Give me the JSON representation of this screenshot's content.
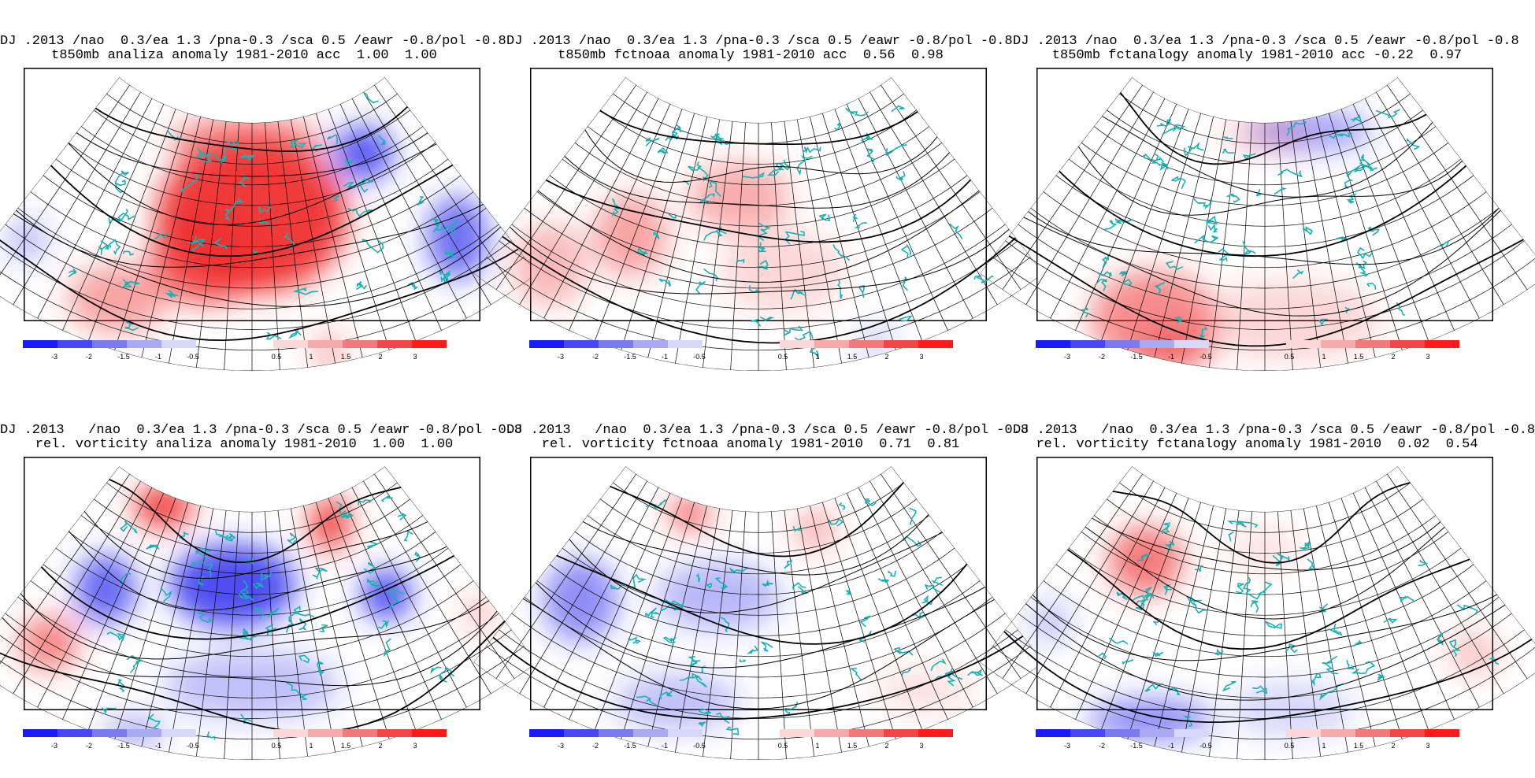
{
  "colorbar": {
    "neg_labels": [
      "-3",
      "-2",
      "-1.5",
      "-1",
      "-0.5"
    ],
    "pos_labels": [
      "0.5",
      "1",
      "1.5",
      "2",
      "3"
    ],
    "neg_colors": [
      "#1a1aff",
      "#4646f5",
      "#7a7af0",
      "#aaaaf3",
      "#d7d7fa"
    ],
    "pos_colors": [
      "#fcd7d7",
      "#f7aaaa",
      "#f27a7a",
      "#f24646",
      "#ff1a1a"
    ]
  },
  "colors": {
    "coast": "#17b3b3",
    "grid": "#000000",
    "warm": "#f03030",
    "cold": "#3030f0"
  },
  "panels": [
    {
      "title1": "DJ .2013 /nao  0.3/ea 1.3 /pna-0.3 /sca 0.5 /eawr -0.8/pol -0.8",
      "title2": "t850mb analiza anomaly 1981-2010 acc  1.00  1.00",
      "blobs": [
        {
          "u": 0.5,
          "v": 0.62,
          "ru": 0.38,
          "rv": 0.55,
          "a": 0.95,
          "c": "warm"
        },
        {
          "u": 0.4,
          "v": 0.45,
          "ru": 0.22,
          "rv": 0.35,
          "a": 0.75,
          "c": "warm"
        },
        {
          "u": 0.48,
          "v": 0.92,
          "ru": 0.3,
          "rv": 0.2,
          "a": 0.55,
          "c": "warm"
        },
        {
          "u": 0.25,
          "v": 0.2,
          "ru": 0.2,
          "rv": 0.25,
          "a": 0.45,
          "c": "warm"
        },
        {
          "u": 0.82,
          "v": 0.78,
          "ru": 0.12,
          "rv": 0.2,
          "a": 0.8,
          "c": "cold"
        },
        {
          "u": 0.92,
          "v": 0.3,
          "ru": 0.12,
          "rv": 0.3,
          "a": 0.7,
          "c": "cold"
        },
        {
          "u": 0.05,
          "v": 0.25,
          "ru": 0.08,
          "rv": 0.15,
          "a": 0.35,
          "c": "cold"
        },
        {
          "u": 0.63,
          "v": 0.05,
          "ru": 0.06,
          "rv": 0.15,
          "a": 0.4,
          "c": "warm"
        }
      ]
    },
    {
      "title1": "DJ .2013 /nao  0.3/ea 1.3 /pna-0.3 /sca 0.5 /eawr -0.8/pol -0.8",
      "title2": "t850mb fctnoaa anomaly 1981-2010 acc  0.56  0.98",
      "blobs": [
        {
          "u": 0.45,
          "v": 0.7,
          "ru": 0.2,
          "rv": 0.25,
          "a": 0.4,
          "c": "warm"
        },
        {
          "u": 0.22,
          "v": 0.45,
          "ru": 0.15,
          "rv": 0.3,
          "a": 0.45,
          "c": "warm"
        },
        {
          "u": 0.1,
          "v": 0.2,
          "ru": 0.15,
          "rv": 0.3,
          "a": 0.35,
          "c": "warm"
        },
        {
          "u": 0.7,
          "v": 0.05,
          "ru": 0.07,
          "rv": 0.1,
          "a": 0.3,
          "c": "cold"
        },
        {
          "u": 0.55,
          "v": 0.4,
          "ru": 0.25,
          "rv": 0.3,
          "a": 0.2,
          "c": "warm"
        }
      ]
    },
    {
      "title1": "DJ .2013 /nao  0.3/ea 1.3 /pna-0.3 /sca 0.5 /eawr -0.8/pol -0.8",
      "title2": "t850mb fctanalogy anomaly 1981-2010 acc -0.22  0.97",
      "blobs": [
        {
          "u": 0.3,
          "v": 0.15,
          "ru": 0.25,
          "rv": 0.35,
          "a": 0.55,
          "c": "warm"
        },
        {
          "u": 0.35,
          "v": 0.05,
          "ru": 0.15,
          "rv": 0.15,
          "a": 0.5,
          "c": "warm"
        },
        {
          "u": 0.65,
          "v": 0.95,
          "ru": 0.25,
          "rv": 0.15,
          "a": 0.45,
          "c": "cold"
        },
        {
          "u": 0.5,
          "v": 0.95,
          "ru": 0.18,
          "rv": 0.1,
          "a": 0.25,
          "c": "warm"
        },
        {
          "u": 0.55,
          "v": 0.2,
          "ru": 0.35,
          "rv": 0.3,
          "a": 0.2,
          "c": "warm"
        }
      ]
    },
    {
      "title1": "DJ .2013   /nao  0.3/ea 1.3 /pna-0.3 /sca 0.5 /eawr -0.8/pol -0.8",
      "title2": "rel. vorticity analiza anomaly 1981-2010  1.00  1.00",
      "blobs": [
        {
          "u": 0.2,
          "v": 0.95,
          "ru": 0.12,
          "rv": 0.15,
          "a": 0.95,
          "c": "warm"
        },
        {
          "u": 0.75,
          "v": 0.9,
          "ru": 0.08,
          "rv": 0.2,
          "a": 0.9,
          "c": "warm"
        },
        {
          "u": 0.45,
          "v": 0.7,
          "ru": 0.25,
          "rv": 0.3,
          "a": 0.85,
          "c": "cold"
        },
        {
          "u": 0.15,
          "v": 0.55,
          "ru": 0.12,
          "rv": 0.25,
          "a": 0.75,
          "c": "cold"
        },
        {
          "u": 0.82,
          "v": 0.55,
          "ru": 0.1,
          "rv": 0.18,
          "a": 0.85,
          "c": "cold"
        },
        {
          "u": 0.1,
          "v": 0.25,
          "ru": 0.12,
          "rv": 0.2,
          "a": 0.6,
          "c": "warm"
        },
        {
          "u": 0.5,
          "v": 0.3,
          "ru": 0.35,
          "rv": 0.25,
          "a": 0.3,
          "c": "cold"
        },
        {
          "u": 0.3,
          "v": 0.05,
          "ru": 0.12,
          "rv": 0.1,
          "a": 0.45,
          "c": "cold"
        },
        {
          "u": 0.97,
          "v": 0.3,
          "ru": 0.05,
          "rv": 0.12,
          "a": 0.4,
          "c": "warm"
        }
      ]
    },
    {
      "title1": "DJ .2013   /nao  0.3/ea 1.3 /pna-0.3 /sca 0.5 /eawr -0.8/pol -0.8",
      "title2": "rel. vorticity fctnoaa anomaly 1981-2010  0.71  0.81",
      "blobs": [
        {
          "u": 0.27,
          "v": 0.95,
          "ru": 0.08,
          "rv": 0.1,
          "a": 0.9,
          "c": "warm"
        },
        {
          "u": 0.1,
          "v": 0.45,
          "ru": 0.15,
          "rv": 0.3,
          "a": 0.55,
          "c": "cold"
        },
        {
          "u": 0.4,
          "v": 0.65,
          "ru": 0.25,
          "rv": 0.25,
          "a": 0.35,
          "c": "cold"
        },
        {
          "u": 0.68,
          "v": 0.9,
          "ru": 0.08,
          "rv": 0.15,
          "a": 0.4,
          "c": "warm"
        },
        {
          "u": 0.35,
          "v": 0.2,
          "ru": 0.25,
          "rv": 0.2,
          "a": 0.3,
          "c": "cold"
        },
        {
          "u": 0.8,
          "v": 0.15,
          "ru": 0.2,
          "rv": 0.15,
          "a": 0.15,
          "c": "warm"
        }
      ]
    },
    {
      "title1": "DJ .2013   /nao  0.3/ea 1.3 /pna-0.3 /sca 0.5 /eawr -0.8/pol -0.8",
      "title2": "rel. vorticity fctanalogy anomaly 1981-2010  0.02  0.54",
      "blobs": [
        {
          "u": 0.18,
          "v": 0.7,
          "ru": 0.15,
          "rv": 0.25,
          "a": 0.65,
          "c": "warm"
        },
        {
          "u": 0.3,
          "v": 0.1,
          "ru": 0.25,
          "rv": 0.15,
          "a": 0.55,
          "c": "cold"
        },
        {
          "u": 0.06,
          "v": 0.3,
          "ru": 0.08,
          "rv": 0.15,
          "a": 0.3,
          "c": "cold"
        },
        {
          "u": 0.55,
          "v": 0.2,
          "ru": 0.25,
          "rv": 0.2,
          "a": 0.2,
          "c": "cold"
        },
        {
          "u": 0.9,
          "v": 0.2,
          "ru": 0.1,
          "rv": 0.15,
          "a": 0.3,
          "c": "warm"
        },
        {
          "u": 0.5,
          "v": 0.85,
          "ru": 0.15,
          "rv": 0.15,
          "a": 0.15,
          "c": "warm"
        }
      ]
    }
  ]
}
